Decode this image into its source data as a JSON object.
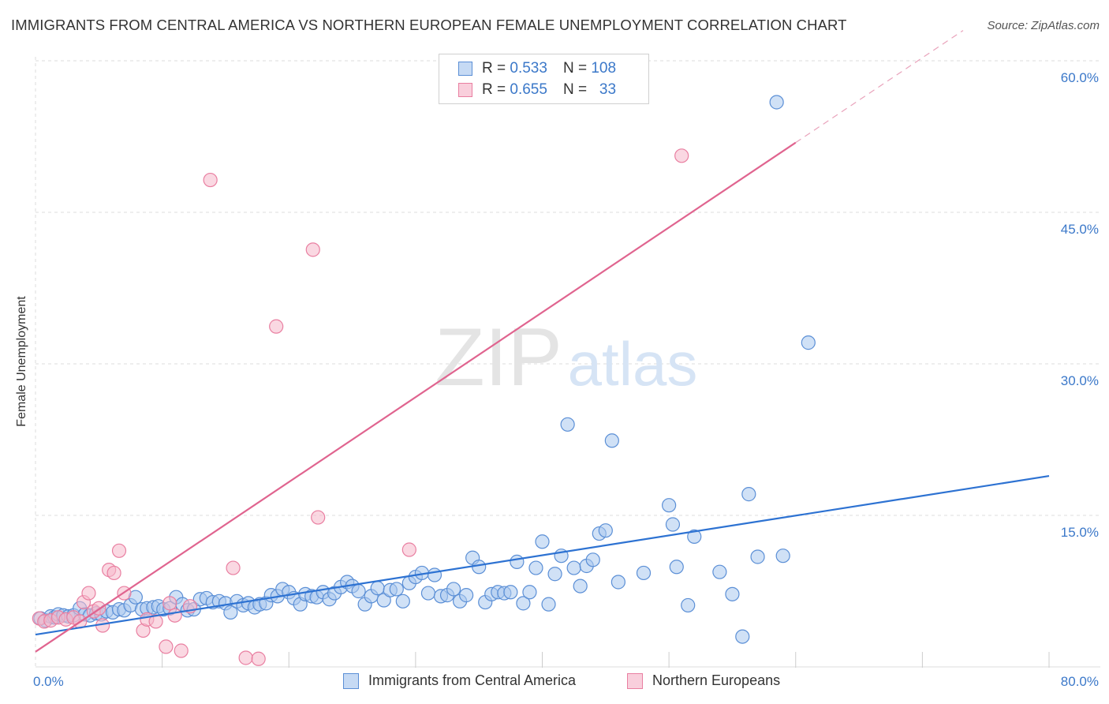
{
  "title": "IMMIGRANTS FROM CENTRAL AMERICA VS NORTHERN EUROPEAN FEMALE UNEMPLOYMENT CORRELATION CHART",
  "source": "Source: ZipAtlas.com",
  "watermark": {
    "zip": "ZIP",
    "atlas": "atlas"
  },
  "legend": {
    "rows": [
      {
        "r_label": "R =",
        "r_value": "0.533",
        "n_label": "N =",
        "n_value": "108"
      },
      {
        "r_label": "R =",
        "r_value": "0.655",
        "n_label": "N =",
        "n_value": "33"
      }
    ]
  },
  "colors": {
    "blue_fill": "#a9c8ef",
    "blue_stroke": "#5b8fd6",
    "blue_line": "#2d72d2",
    "pink_fill": "#f5b8cb",
    "pink_stroke": "#e97fa1",
    "pink_line": "#e0648f",
    "grid": "#dddddd",
    "tick_text": "#3b78c9"
  },
  "chart_data": {
    "type": "scatter",
    "title": "IMMIGRANTS FROM CENTRAL AMERICA VS NORTHERN EUROPEAN FEMALE UNEMPLOYMENT CORRELATION CHART",
    "xlabel": "",
    "ylabel": "Female Unemployment",
    "xlim": [
      0,
      80
    ],
    "ylim": [
      0,
      63
    ],
    "x_tick_labels": [
      "0.0%",
      "80.0%"
    ],
    "y_ticks": [
      15,
      30,
      45,
      60
    ],
    "y_tick_labels": [
      "15.0%",
      "30.0%",
      "45.0%",
      "60.0%"
    ],
    "grid": true,
    "legend_position": "bottom",
    "series": [
      {
        "name": "Immigrants from Central America",
        "color": "#a9c8ef",
        "r": 0.533,
        "n": 108,
        "trend": {
          "x": [
            0,
            80
          ],
          "y": [
            3.2,
            18.9
          ]
        },
        "points": [
          [
            0.4,
            4.8
          ],
          [
            0.8,
            4.6
          ],
          [
            1.2,
            5.0
          ],
          [
            1.5,
            4.9
          ],
          [
            1.8,
            5.2
          ],
          [
            2.2,
            5.1
          ],
          [
            2.6,
            5.0
          ],
          [
            3.0,
            5.1
          ],
          [
            3.5,
            5.8
          ],
          [
            3.9,
            5.2
          ],
          [
            4.3,
            5.1
          ],
          [
            4.8,
            5.3
          ],
          [
            5.2,
            5.2
          ],
          [
            5.6,
            5.5
          ],
          [
            6.1,
            5.4
          ],
          [
            6.6,
            5.7
          ],
          [
            7.0,
            5.6
          ],
          [
            7.5,
            6.1
          ],
          [
            7.9,
            6.9
          ],
          [
            8.4,
            5.7
          ],
          [
            8.8,
            5.8
          ],
          [
            9.3,
            5.9
          ],
          [
            9.7,
            6.0
          ],
          [
            10.1,
            5.7
          ],
          [
            10.6,
            5.8
          ],
          [
            11.1,
            6.9
          ],
          [
            11.6,
            6.2
          ],
          [
            12.0,
            5.6
          ],
          [
            12.5,
            5.7
          ],
          [
            13.0,
            6.7
          ],
          [
            13.5,
            6.8
          ],
          [
            14.0,
            6.4
          ],
          [
            14.5,
            6.5
          ],
          [
            15.0,
            6.3
          ],
          [
            15.4,
            5.4
          ],
          [
            15.9,
            6.5
          ],
          [
            16.4,
            6.1
          ],
          [
            16.8,
            6.3
          ],
          [
            17.3,
            5.9
          ],
          [
            17.7,
            6.2
          ],
          [
            18.2,
            6.3
          ],
          [
            18.6,
            7.1
          ],
          [
            19.1,
            7.0
          ],
          [
            19.5,
            7.7
          ],
          [
            20.0,
            7.4
          ],
          [
            20.4,
            6.8
          ],
          [
            20.9,
            6.2
          ],
          [
            21.3,
            7.2
          ],
          [
            21.8,
            7.0
          ],
          [
            22.2,
            6.9
          ],
          [
            22.7,
            7.4
          ],
          [
            23.2,
            6.7
          ],
          [
            23.6,
            7.3
          ],
          [
            24.1,
            7.9
          ],
          [
            24.6,
            8.4
          ],
          [
            25.0,
            8.0
          ],
          [
            25.5,
            7.5
          ],
          [
            26.0,
            6.2
          ],
          [
            26.5,
            7.0
          ],
          [
            27.0,
            7.8
          ],
          [
            27.5,
            6.6
          ],
          [
            28.0,
            7.6
          ],
          [
            28.5,
            7.7
          ],
          [
            29.0,
            6.5
          ],
          [
            29.5,
            8.3
          ],
          [
            30.0,
            8.9
          ],
          [
            30.5,
            9.3
          ],
          [
            31.0,
            7.3
          ],
          [
            31.5,
            9.1
          ],
          [
            32.0,
            7.0
          ],
          [
            32.5,
            7.1
          ],
          [
            33.0,
            7.7
          ],
          [
            33.5,
            6.5
          ],
          [
            34.0,
            7.1
          ],
          [
            34.5,
            10.8
          ],
          [
            35.0,
            9.9
          ],
          [
            35.5,
            6.4
          ],
          [
            36.0,
            7.2
          ],
          [
            36.5,
            7.4
          ],
          [
            37.0,
            7.3
          ],
          [
            37.5,
            7.4
          ],
          [
            38.0,
            10.4
          ],
          [
            38.5,
            6.3
          ],
          [
            39.0,
            7.4
          ],
          [
            39.5,
            9.8
          ],
          [
            40.0,
            12.4
          ],
          [
            40.5,
            6.2
          ],
          [
            41.0,
            9.2
          ],
          [
            41.5,
            11.0
          ],
          [
            42.0,
            24.0
          ],
          [
            42.5,
            9.8
          ],
          [
            43.0,
            8.0
          ],
          [
            43.5,
            10.0
          ],
          [
            44.0,
            10.6
          ],
          [
            44.5,
            13.2
          ],
          [
            45.0,
            13.5
          ],
          [
            45.5,
            22.4
          ],
          [
            46.0,
            8.4
          ],
          [
            48.0,
            9.3
          ],
          [
            50.0,
            16.0
          ],
          [
            50.3,
            14.1
          ],
          [
            50.6,
            9.9
          ],
          [
            51.5,
            6.1
          ],
          [
            52.0,
            12.9
          ],
          [
            54.0,
            9.4
          ],
          [
            55.0,
            7.2
          ],
          [
            55.8,
            3.0
          ],
          [
            56.3,
            17.1
          ],
          [
            57.0,
            10.9
          ],
          [
            58.5,
            55.9
          ],
          [
            59.0,
            11.0
          ],
          [
            61.0,
            32.1
          ]
        ]
      },
      {
        "name": "Northern Europeans",
        "color": "#f5b8cb",
        "r": 0.655,
        "n": 33,
        "trend": {
          "x": [
            0,
            60
          ],
          "y": [
            1.5,
            51.9
          ]
        },
        "trend_dashed_extension": {
          "x": [
            60,
            80
          ],
          "y": [
            51.9,
            68.7
          ]
        },
        "points": [
          [
            0.3,
            4.8
          ],
          [
            0.7,
            4.5
          ],
          [
            1.2,
            4.6
          ],
          [
            1.8,
            4.9
          ],
          [
            2.4,
            4.7
          ],
          [
            3.0,
            4.9
          ],
          [
            3.5,
            4.5
          ],
          [
            3.8,
            6.4
          ],
          [
            4.2,
            7.3
          ],
          [
            4.6,
            5.5
          ],
          [
            5.0,
            5.8
          ],
          [
            5.3,
            4.1
          ],
          [
            5.8,
            9.6
          ],
          [
            6.2,
            9.3
          ],
          [
            6.6,
            11.5
          ],
          [
            7.0,
            7.3
          ],
          [
            8.5,
            3.6
          ],
          [
            8.8,
            4.7
          ],
          [
            9.5,
            4.5
          ],
          [
            10.3,
            2.0
          ],
          [
            10.6,
            6.3
          ],
          [
            11.0,
            5.1
          ],
          [
            11.5,
            1.6
          ],
          [
            12.2,
            6.0
          ],
          [
            13.8,
            48.2
          ],
          [
            15.6,
            9.8
          ],
          [
            16.6,
            0.9
          ],
          [
            17.6,
            0.8
          ],
          [
            19.0,
            33.7
          ],
          [
            21.9,
            41.3
          ],
          [
            22.3,
            14.8
          ],
          [
            29.5,
            11.6
          ],
          [
            51.0,
            50.6
          ]
        ]
      }
    ]
  }
}
